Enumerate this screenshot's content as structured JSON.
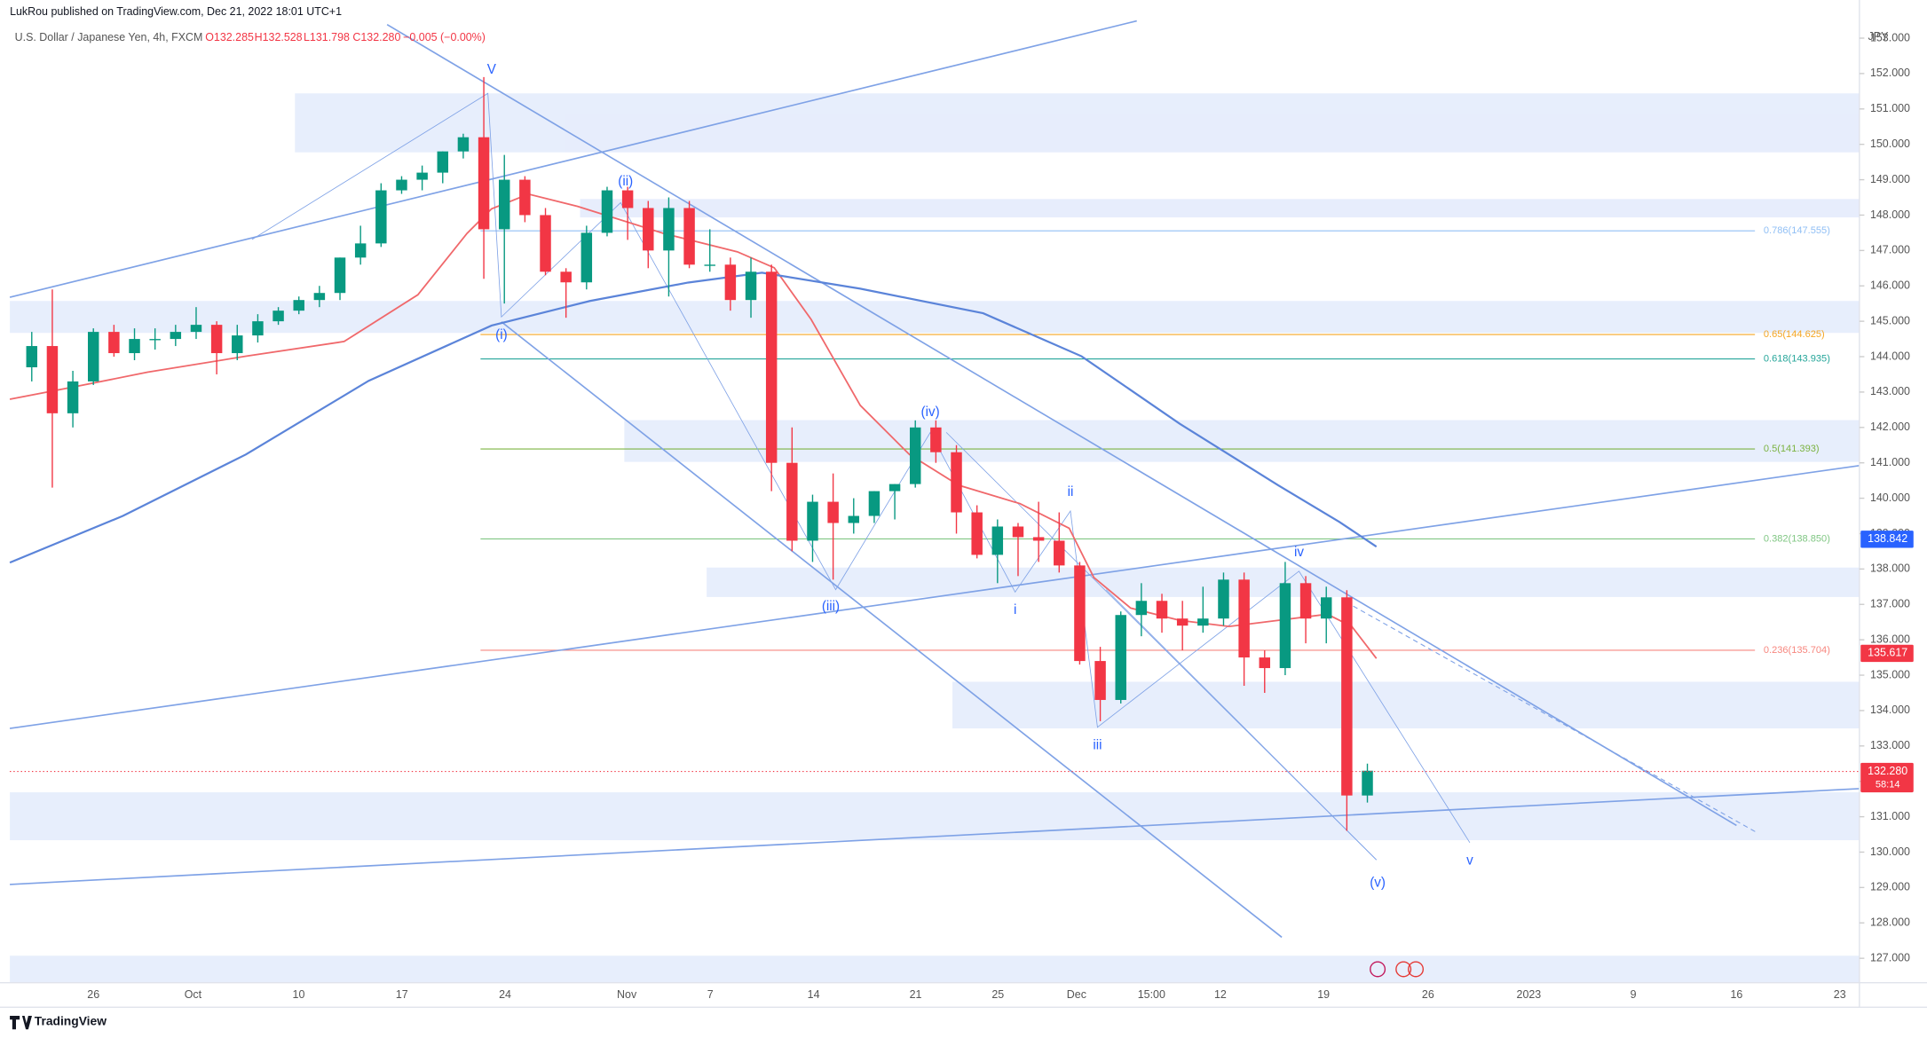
{
  "chart_data": {
    "type": "candlestick",
    "publisher": "LukRou published on TradingView.com, Dec 21, 2022 18:01 UTC+1",
    "title": "U.S. Dollar / Japanese Yen, 4h, FXCM",
    "header_values": [
      "O132.285",
      "H132.528",
      "L131.798",
      "C132.280",
      "−0.005 (−0.00%)"
    ],
    "currency": "JPY",
    "brand": "TradingView",
    "up_color": "#089981",
    "down_color": "#f23645",
    "open": [
      143.7,
      144.3,
      142.4,
      143.3,
      144.7,
      144.1,
      144.5,
      144.5,
      144.7,
      144.9,
      144.1,
      144.6,
      145.0,
      145.3,
      145.6,
      145.8,
      146.8,
      147.2,
      148.7,
      149.0,
      149.2,
      149.8,
      150.2,
      147.6,
      149.0,
      148.0,
      146.4,
      146.1,
      147.5,
      148.7,
      148.2,
      147.0,
      148.2,
      146.6,
      146.6,
      145.6,
      146.4,
      141.0,
      138.8,
      139.9,
      139.3,
      139.5,
      140.2,
      140.4,
      142.0,
      141.3,
      139.6,
      138.4,
      139.2,
      138.9,
      138.8,
      138.1,
      135.4,
      134.3,
      136.7,
      137.1,
      136.6,
      136.4,
      136.6,
      137.7,
      135.5,
      135.2,
      137.6,
      136.6,
      137.2,
      131.6
    ],
    "high": [
      144.7,
      145.9,
      143.6,
      144.8,
      144.9,
      144.8,
      144.8,
      144.9,
      145.4,
      145.0,
      144.9,
      145.2,
      145.4,
      145.7,
      146.0,
      146.8,
      147.7,
      148.9,
      149.1,
      149.4,
      149.8,
      150.3,
      151.9,
      149.7,
      149.1,
      148.2,
      146.5,
      147.7,
      148.8,
      148.8,
      148.4,
      148.5,
      148.4,
      147.6,
      146.8,
      146.8,
      146.6,
      142.0,
      140.1,
      140.7,
      140.0,
      140.2,
      140.4,
      142.2,
      142.2,
      141.5,
      139.8,
      139.4,
      139.3,
      139.9,
      139.6,
      138.2,
      135.8,
      136.8,
      137.6,
      137.3,
      137.1,
      137.5,
      137.9,
      137.9,
      135.7,
      138.2,
      137.8,
      137.5,
      137.4,
      132.5
    ],
    "low": [
      143.3,
      140.3,
      142.0,
      143.2,
      144.0,
      143.9,
      144.2,
      144.3,
      144.5,
      143.5,
      143.9,
      144.4,
      144.9,
      145.2,
      145.4,
      145.6,
      146.6,
      147.1,
      148.6,
      148.7,
      148.9,
      149.6,
      146.2,
      145.5,
      147.8,
      146.3,
      145.1,
      145.9,
      147.4,
      147.3,
      146.5,
      145.7,
      146.5,
      146.4,
      145.3,
      145.1,
      140.2,
      138.5,
      138.2,
      137.7,
      139.0,
      139.3,
      139.4,
      140.3,
      141.0,
      139.0,
      138.3,
      137.6,
      137.8,
      138.2,
      137.9,
      135.3,
      133.7,
      134.2,
      136.1,
      136.2,
      135.7,
      136.2,
      136.4,
      134.7,
      134.5,
      135.0,
      135.9,
      135.9,
      130.6,
      131.4
    ],
    "close": [
      144.3,
      142.4,
      143.3,
      144.7,
      144.1,
      144.5,
      144.5,
      144.7,
      144.9,
      144.1,
      144.6,
      145.0,
      145.3,
      145.6,
      145.8,
      146.8,
      147.2,
      148.7,
      149.0,
      149.2,
      149.8,
      150.2,
      147.6,
      149.0,
      148.0,
      146.4,
      146.1,
      147.5,
      148.7,
      148.2,
      147.0,
      148.2,
      146.6,
      146.6,
      145.6,
      146.4,
      141.0,
      138.8,
      139.9,
      139.3,
      139.5,
      140.2,
      140.4,
      142.0,
      141.3,
      139.6,
      138.4,
      139.2,
      138.9,
      138.8,
      138.1,
      135.4,
      134.3,
      136.7,
      137.1,
      136.6,
      136.4,
      136.6,
      137.7,
      135.5,
      135.2,
      137.6,
      136.6,
      137.2,
      131.6,
      132.3
    ],
    "ylim": [
      126.31,
      153.8
    ],
    "yticks": [
      {
        "value": 127,
        "label": "127.000"
      },
      {
        "value": 128,
        "label": "128.000"
      },
      {
        "value": 129,
        "label": "129.000"
      },
      {
        "value": 130,
        "label": "130.000"
      },
      {
        "value": 131,
        "label": "131.000"
      },
      {
        "value": 132,
        "label": "132.000"
      },
      {
        "value": 133,
        "label": "133.000"
      },
      {
        "value": 134,
        "label": "134.000"
      },
      {
        "value": 135,
        "label": "135.000"
      },
      {
        "value": 136,
        "label": "136.000"
      },
      {
        "value": 137,
        "label": "137.000"
      },
      {
        "value": 138,
        "label": "138.000"
      },
      {
        "value": 139,
        "label": "139.000"
      },
      {
        "value": 140,
        "label": "140.000"
      },
      {
        "value": 141,
        "label": "141.000"
      },
      {
        "value": 142,
        "label": "142.000"
      },
      {
        "value": 143,
        "label": "143.000"
      },
      {
        "value": 144,
        "label": "144.000"
      },
      {
        "value": 145,
        "label": "145.000"
      },
      {
        "value": 146,
        "label": "146.000"
      },
      {
        "value": 147,
        "label": "147.000"
      },
      {
        "value": 148,
        "label": "148.000"
      },
      {
        "value": 149,
        "label": "149.000"
      },
      {
        "value": 150,
        "label": "150.000"
      },
      {
        "value": 151,
        "label": "151.000"
      },
      {
        "value": 152,
        "label": "152.000"
      },
      {
        "value": 153,
        "label": "153.000"
      }
    ],
    "x_labels": [
      "26",
      "Oct",
      "10",
      "17",
      "24",
      "Nov",
      "7",
      "14",
      "21",
      "25",
      "Dec",
      "15:00",
      "12",
      "19",
      "26",
      "2023",
      "9",
      "16",
      "23"
    ],
    "fib_levels": [
      {
        "label": "0.786(147.555)",
        "value": 147.555,
        "color": "#90bff5"
      },
      {
        "label": "0.65(144.625)",
        "value": 144.625,
        "color": "#f5a623"
      },
      {
        "label": "0.618(143.935)",
        "value": 143.935,
        "color": "#26a69a"
      },
      {
        "label": "0.5(141.393)",
        "value": 141.393,
        "color": "#7cb342"
      },
      {
        "label": "0.382(138.850)",
        "value": 138.85,
        "color": "#81c784"
      },
      {
        "label": "0.236(135.704)",
        "value": 135.704,
        "color": "#f7877f"
      }
    ],
    "price_tags": [
      {
        "value": 138.842,
        "label": "138.842",
        "color": "#2962ff"
      },
      {
        "value": 135.617,
        "label": "135.617",
        "color": "#f23645"
      },
      {
        "value": 132.28,
        "label": "132.280",
        "color": "#f23645"
      }
    ],
    "countdown": "58:14",
    "wave_labels": [
      "V",
      "(i)",
      "(ii)",
      "(iii)",
      "(iv)",
      "(v)",
      "i",
      "ii",
      "iii",
      "iv",
      "v"
    ]
  }
}
